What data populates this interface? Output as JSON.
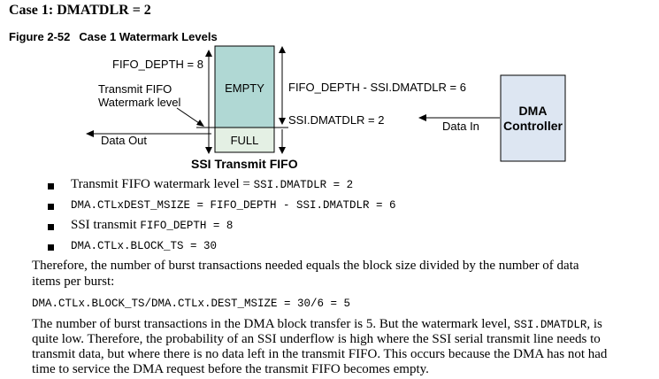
{
  "heading": "Case 1: DMATDLR = 2",
  "figure": {
    "number": "Figure 2-52",
    "title": "Case 1 Watermark Levels"
  },
  "diagram": {
    "fifo_depth_label": "FIFO_DEPTH = 8",
    "watermark_label_line1": "Transmit FIFO",
    "watermark_label_line2": "Watermark level",
    "data_out": "Data Out",
    "empty": "EMPTY",
    "full": "FULL",
    "fifo_title": "SSI Transmit FIFO",
    "depth_minus_label": "FIFO_DEPTH - SSI.DMATDLR = 6",
    "dmatdlr_label": "SSI.DMATDLR = 2",
    "data_in": "Data In",
    "dma_line1": "DMA",
    "dma_line2": "Controller",
    "colors": {
      "empty_fill": "#b0d8d4",
      "full_fill": "#e4f0e4",
      "dma_fill": "#dde6f2"
    }
  },
  "bullets": [
    {
      "text": "Transmit FIFO watermark level = ",
      "code": "SSI.DMATDLR = 2"
    },
    {
      "text": "",
      "code": "DMA.CTLxDEST_MSIZE = FIFO_DEPTH - SSI.DMATDLR = 6"
    },
    {
      "text": "SSI transmit ",
      "code": "FIFO_DEPTH = 8"
    },
    {
      "text": "",
      "code": "DMA.CTLx.BLOCK_TS = 30"
    }
  ],
  "para1_line1": "Therefore, the number of burst transactions needed equals the block size divided by the number of data",
  "para1_line2": "items per burst:",
  "formula": "DMA.CTLx.BLOCK_TS/DMA.CTLx.DEST_MSIZE = 30/6 = 5",
  "para2": {
    "line1_text": "The number of burst transactions in the DMA block transfer is 5. But the watermark level, ",
    "line1_code": "SSI.DMATDLR",
    "line1_end": ", is",
    "line2": "quite low. Therefore, the probability of an SSI underflow is high where the SSI serial transmit line needs to",
    "line3": "transmit data, but where there is no data left in the transmit FIFO. This occurs because the DMA has not had",
    "line4": "time to service the DMA request before the transmit FIFO becomes empty."
  }
}
